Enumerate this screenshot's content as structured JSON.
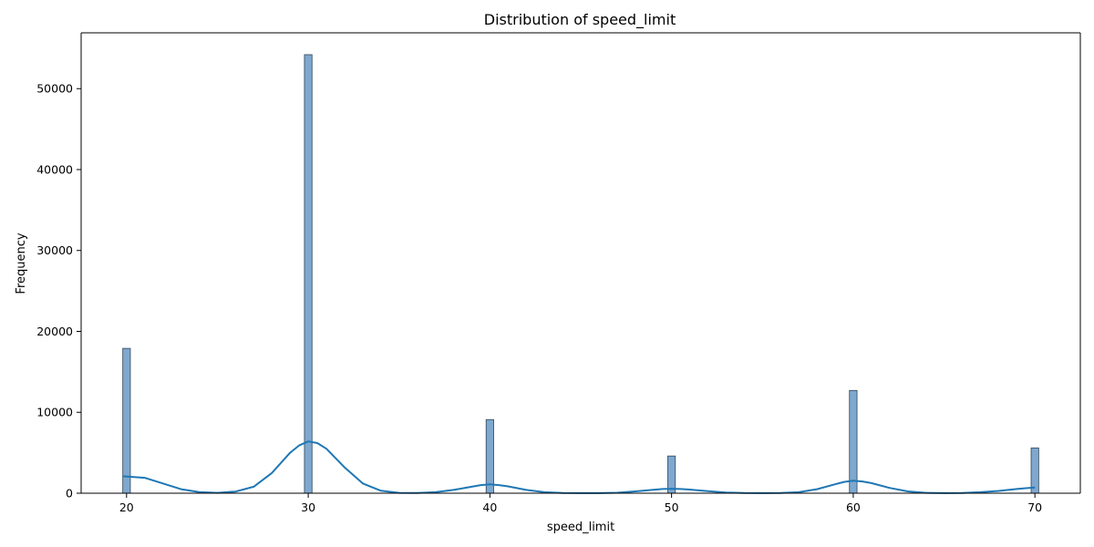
{
  "chart_data": {
    "type": "bar",
    "title": "Distribution of speed_limit",
    "xlabel": "speed_limit",
    "ylabel": "Frequency",
    "xlim": [
      17.5,
      72.5
    ],
    "ylim": [
      0,
      56900
    ],
    "xticks": [
      20,
      30,
      40,
      50,
      60,
      70
    ],
    "yticks": [
      0,
      10000,
      20000,
      30000,
      40000,
      50000
    ],
    "bin_width": 0.4167,
    "series": [
      {
        "x": [
          20,
          30,
          40,
          50,
          60,
          70
        ],
        "values": [
          17900,
          54200,
          9100,
          4600,
          12700,
          5600
        ]
      }
    ],
    "kde": {
      "x": [
        19.8,
        21,
        22,
        23,
        24,
        25,
        26,
        27,
        28,
        29,
        29.5,
        30,
        30.5,
        31,
        32,
        33,
        34,
        35,
        36,
        37,
        38,
        39,
        39.5,
        40,
        40.5,
        41,
        42,
        43,
        44,
        45,
        46,
        47,
        48,
        49,
        49.5,
        50,
        50.5,
        51,
        52,
        53,
        54,
        55,
        56,
        57,
        58,
        59,
        59.5,
        60,
        60.5,
        61,
        62,
        63,
        64,
        65,
        66,
        67,
        68,
        69,
        69.5,
        70
      ],
      "y": [
        2100,
        1900,
        1200,
        500,
        150,
        40,
        200,
        800,
        2500,
        5000,
        5900,
        6400,
        6200,
        5500,
        3200,
        1200,
        300,
        50,
        20,
        120,
        400,
        800,
        1000,
        1100,
        1000,
        850,
        400,
        120,
        30,
        8,
        15,
        60,
        220,
        430,
        520,
        550,
        520,
        450,
        250,
        90,
        20,
        6,
        20,
        120,
        500,
        1100,
        1400,
        1550,
        1450,
        1250,
        650,
        220,
        50,
        10,
        30,
        120,
        280,
        520,
        620,
        700
      ]
    },
    "bar_color": "#7ea8cf",
    "bar_edge_color": "#2f4354",
    "line_color": "#1f77b4"
  }
}
